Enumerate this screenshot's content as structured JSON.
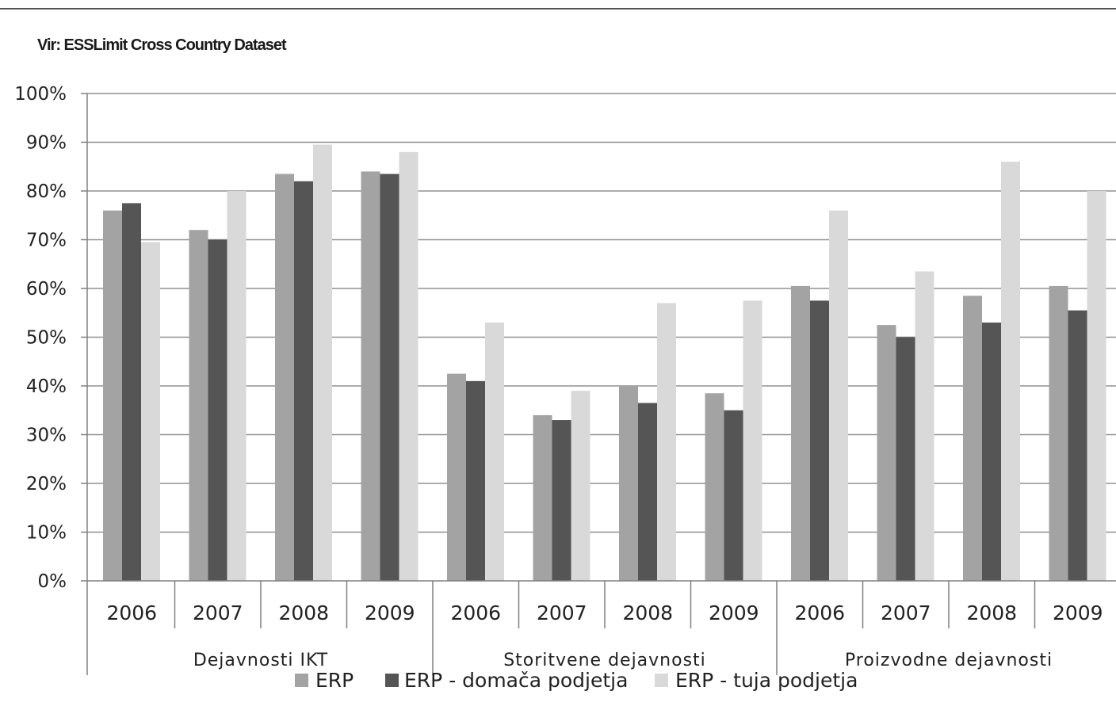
{
  "source_note": "Vir: ESSLimit Cross Country Dataset",
  "colors": {
    "erp": "#a3a3a3",
    "erp_domestic": "#555555",
    "erp_foreign": "#d9d9d9",
    "gridline": "#909090",
    "axis": "#808080"
  },
  "chart_data": {
    "type": "bar",
    "title": "",
    "xlabel": "",
    "ylabel": "",
    "ylim": [
      0,
      100
    ],
    "y_ticks": [
      "0%",
      "10%",
      "20%",
      "30%",
      "40%",
      "50%",
      "60%",
      "70%",
      "80%",
      "90%",
      "100%"
    ],
    "grid": true,
    "legend_position": "bottom",
    "groups": [
      {
        "label": "Dejavnosti IKT",
        "categories": [
          "2006",
          "2007",
          "2008",
          "2009"
        ]
      },
      {
        "label": "Storitvene dejavnosti",
        "categories": [
          "2006",
          "2007",
          "2008",
          "2009"
        ]
      },
      {
        "label": "Proizvodne dejavnosti",
        "categories": [
          "2006",
          "2007",
          "2008",
          "2009"
        ]
      }
    ],
    "series": [
      {
        "name": "ERP",
        "color": "#a3a3a3",
        "values": [
          76,
          72,
          83.5,
          84,
          42.5,
          34,
          40,
          38.5,
          60.5,
          52.5,
          58.5,
          60.5
        ]
      },
      {
        "name": "ERP - domača podjetja",
        "color": "#555555",
        "values": [
          77.5,
          70,
          82,
          83.5,
          41,
          33,
          36.5,
          35,
          57.5,
          50,
          53,
          55.5
        ]
      },
      {
        "name": "ERP - tuja podjetja",
        "color": "#d9d9d9",
        "values": [
          69.5,
          80,
          89.5,
          88,
          53,
          39,
          57,
          57.5,
          76,
          63.5,
          86,
          80
        ]
      }
    ]
  }
}
